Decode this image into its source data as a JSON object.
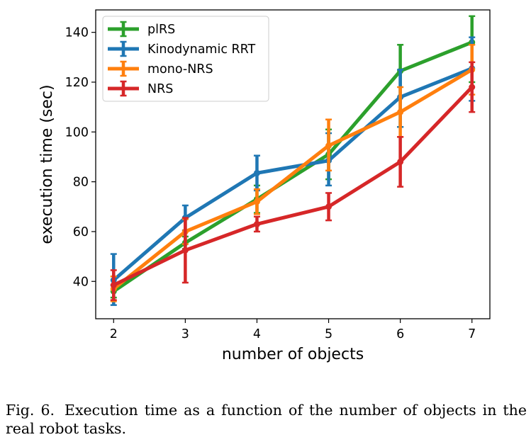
{
  "chart_data": {
    "type": "line",
    "title": "",
    "xlabel": "number of objects",
    "ylabel": "execution time (sec)",
    "x": [
      2,
      3,
      4,
      5,
      6,
      7
    ],
    "xlim": [
      1.75,
      7.25
    ],
    "ylim": [
      25,
      149
    ],
    "yticks": [
      40,
      60,
      80,
      100,
      120,
      140
    ],
    "grid": false,
    "legend_position": "top-left",
    "error_bars": true,
    "series": [
      {
        "name": "plRS",
        "color": "#2ca02c",
        "values": [
          36,
          55.5,
          73,
          91,
          124.5,
          136
        ],
        "err_low": [
          2.5,
          2.5,
          5.5,
          10,
          22.5,
          16
        ],
        "err_high": [
          2.5,
          2.5,
          5.5,
          10,
          10.5,
          10.5
        ]
      },
      {
        "name": "Kinodynamic RRT",
        "color": "#1f77b4",
        "values": [
          40.5,
          65.5,
          83.5,
          88.5,
          114,
          125.5
        ],
        "err_low": [
          10,
          5,
          7,
          10,
          12,
          13
        ],
        "err_high": [
          10.5,
          5,
          7,
          11,
          11,
          12.5
        ]
      },
      {
        "name": "mono-NRS",
        "color": "#ff7f0e",
        "values": [
          37,
          60,
          72,
          94.5,
          108,
          125
        ],
        "err_low": [
          5,
          5,
          5,
          10,
          10,
          10
        ],
        "err_high": [
          5,
          5,
          5,
          10.5,
          10,
          10
        ]
      },
      {
        "name": "NRS",
        "color": "#d62728",
        "values": [
          38.5,
          52.5,
          63,
          70,
          88,
          118
        ],
        "err_low": [
          6,
          13,
          3,
          5.5,
          10,
          10
        ],
        "err_high": [
          6,
          13,
          3,
          5.5,
          10,
          10
        ]
      }
    ]
  },
  "caption": {
    "label": "Fig. 6.",
    "text": "Execution time as a function of the number of objects in the real robot tasks."
  }
}
